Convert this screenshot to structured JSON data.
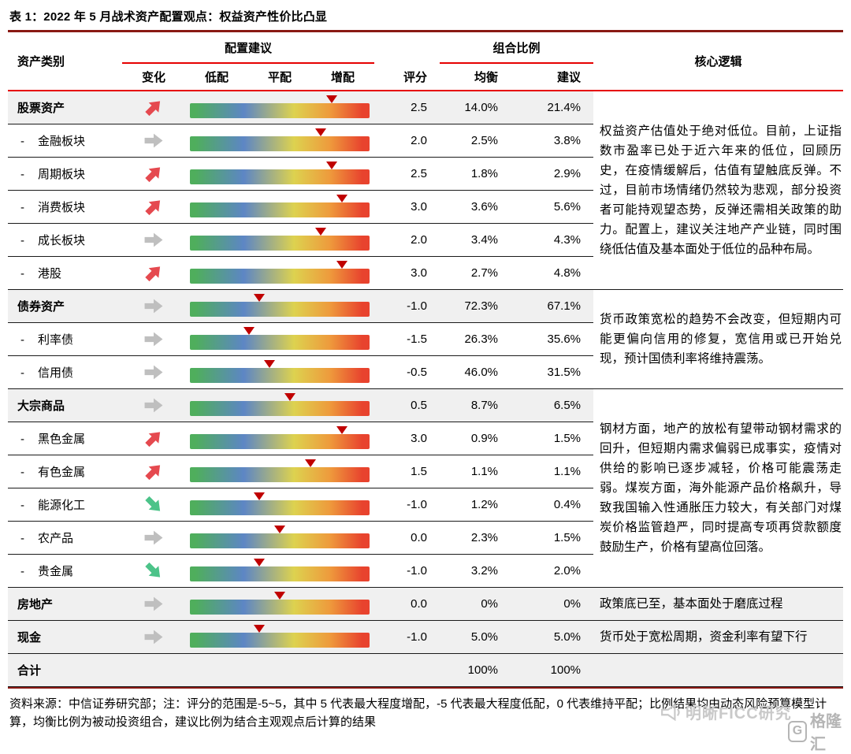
{
  "title": "表 1：2022 年 5 月战术资产配置观点：权益资产性价比凸显",
  "header": {
    "asset_class": "资产类别",
    "allocation_group": "配置建议",
    "portfolio_group": "组合比例",
    "core_logic": "核心逻辑",
    "change": "变化",
    "underweight": "低配",
    "neutral": "平配",
    "overweight": "增配",
    "score": "评分",
    "balanced": "均衡",
    "suggested": "建议"
  },
  "rows": [
    {
      "name": "股票资产",
      "level": "section",
      "arrow": "up",
      "score": 2.5,
      "score_label": "2.5",
      "balanced": "14.0%",
      "suggested": "21.4%",
      "logic": {
        "rowspan": 6,
        "text": "权益资产估值处于绝对低位。目前，上证指数市盈率已处于近六年来的低位，回顾历史，在疫情缓解后，估值有望触底反弹。不过，目前市场情绪仍然较为悲观，部分投资者可能持观望态势，反弹还需相关政策的助力。配置上，建议关注地产产业链，同时围绕低估值及基本面处于低位的品种布局。"
      }
    },
    {
      "name": "金融板块",
      "level": "sub",
      "arrow": "flat",
      "score": 2.0,
      "score_label": "2.0",
      "balanced": "2.5%",
      "suggested": "3.8%"
    },
    {
      "name": "周期板块",
      "level": "sub",
      "arrow": "up",
      "score": 2.5,
      "score_label": "2.5",
      "balanced": "1.8%",
      "suggested": "2.9%"
    },
    {
      "name": "消费板块",
      "level": "sub",
      "arrow": "up",
      "score": 3.0,
      "score_label": "3.0",
      "balanced": "3.6%",
      "suggested": "5.6%"
    },
    {
      "name": "成长板块",
      "level": "sub",
      "arrow": "flat",
      "score": 2.0,
      "score_label": "2.0",
      "balanced": "3.4%",
      "suggested": "4.3%"
    },
    {
      "name": "港股",
      "level": "sub",
      "arrow": "up",
      "score": 3.0,
      "score_label": "3.0",
      "balanced": "2.7%",
      "suggested": "4.8%"
    },
    {
      "name": "债券资产",
      "level": "section",
      "arrow": "flat",
      "score": -1.0,
      "score_label": "-1.0",
      "balanced": "72.3%",
      "suggested": "67.1%",
      "logic": {
        "rowspan": 3,
        "text": "货币政策宽松的趋势不会改变，但短期内可能更偏向信用的修复，宽信用或已开始兑现，预计国债利率将维持震荡。"
      }
    },
    {
      "name": "利率债",
      "level": "sub",
      "arrow": "flat",
      "score": -1.5,
      "score_label": "-1.5",
      "balanced": "26.3%",
      "suggested": "35.6%"
    },
    {
      "name": "信用债",
      "level": "sub",
      "arrow": "flat",
      "score": -0.5,
      "score_label": "-0.5",
      "balanced": "46.0%",
      "suggested": "31.5%"
    },
    {
      "name": "大宗商品",
      "level": "section",
      "arrow": "flat",
      "score": 0.5,
      "score_label": "0.5",
      "balanced": "8.7%",
      "suggested": "6.5%",
      "logic": {
        "rowspan": 6,
        "text": "钢材方面，地产的放松有望带动钢材需求的回升，但短期内需求偏弱已成事实，疫情对供给的影响已逐步减轻，价格可能震荡走弱。煤炭方面，海外能源产品价格飙升，导致我国输入性通胀压力较大，有关部门对煤炭价格监管趋严，同时提高专项再贷款额度鼓励生产，价格有望高位回落。"
      }
    },
    {
      "name": "黑色金属",
      "level": "sub",
      "arrow": "up",
      "score": 3.0,
      "score_label": "3.0",
      "balanced": "0.9%",
      "suggested": "1.5%"
    },
    {
      "name": "有色金属",
      "level": "sub",
      "arrow": "up",
      "score": 1.5,
      "score_label": "1.5",
      "balanced": "1.1%",
      "suggested": "1.1%"
    },
    {
      "name": "能源化工",
      "level": "sub",
      "arrow": "down",
      "score": -1.0,
      "score_label": "-1.0",
      "balanced": "1.2%",
      "suggested": "0.4%"
    },
    {
      "name": "农产品",
      "level": "sub",
      "arrow": "flat",
      "score": 0.0,
      "score_label": "0.0",
      "balanced": "2.3%",
      "suggested": "1.5%"
    },
    {
      "name": "贵金属",
      "level": "sub",
      "arrow": "down",
      "score": -1.0,
      "score_label": "-1.0",
      "balanced": "3.2%",
      "suggested": "2.0%"
    },
    {
      "name": "房地产",
      "level": "section",
      "arrow": "flat",
      "score": 0.0,
      "score_label": "0.0",
      "balanced": "0%",
      "suggested": "0%",
      "logic": {
        "rowspan": 1,
        "text": "政策底已至，基本面处于磨底过程"
      }
    },
    {
      "name": "现金",
      "level": "section",
      "arrow": "flat",
      "score": -1.0,
      "score_label": "-1.0",
      "balanced": "5.0%",
      "suggested": "5.0%",
      "logic": {
        "rowspan": 1,
        "text": "货币处于宽松周期，资金利率有望下行"
      }
    },
    {
      "name": "合计",
      "level": "total",
      "arrow": null,
      "score": null,
      "score_label": "",
      "balanced": "100%",
      "suggested": "100%",
      "logic": {
        "rowspan": 1,
        "text": ""
      }
    }
  ],
  "footer": {
    "note": "资料来源：中信证券研究部；注：评分的范围是-5~5，其中 5 代表最大程度增配，-5 代表最大程度低配，0 代表维持平配；比例结果均由动态风险预算模型计算，均衡比例为被动投资组合，建议比例为结合主观观点后计算的结果"
  },
  "watermarks": {
    "brand1": "明晰FICC研究",
    "brand2": "格隆汇",
    "logo_letter": "G"
  },
  "score_scale": {
    "min": -5,
    "max": 5
  },
  "colors": {
    "bar_gradient_stops": [
      "#4fae5c 3%",
      "#5d86c5 30%",
      "#ddd24f 58%",
      "#ee9a3c 78%",
      "#e8432e 96%"
    ],
    "marker": "#c00000",
    "arrows": {
      "up": "#e5494f",
      "flat": "#bfbfbf",
      "down": "#4cc389"
    },
    "rule_maroon": "#8a1a14",
    "rule_red": "#e60000",
    "section_bg": "#f0f0f0"
  }
}
